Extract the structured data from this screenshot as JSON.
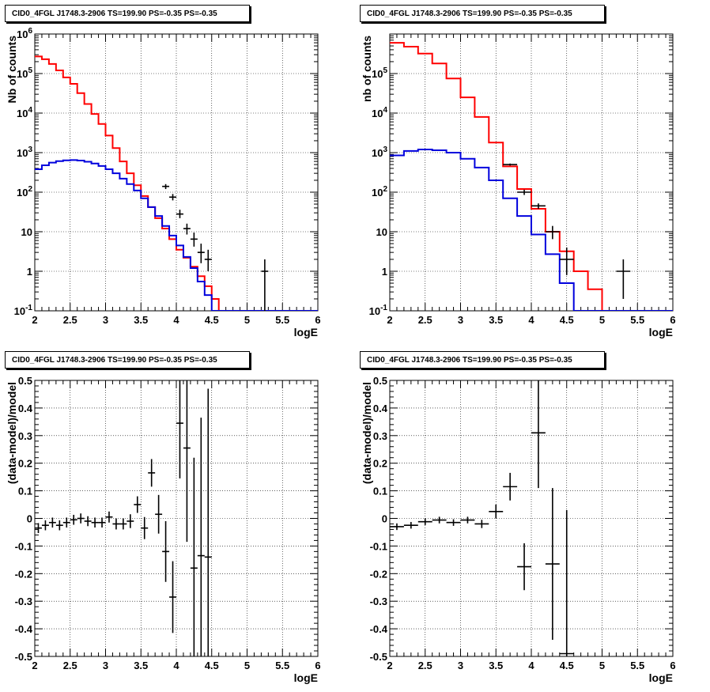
{
  "panels": [
    {
      "title": "CID0_4FGL J1748.3-2906 TS=199.90 PS=-0.35 PS=-0.35"
    },
    {
      "title": "CID0_4FGL J1748.3-2906 TS=199.90 PS=-0.35 PS=-0.35"
    },
    {
      "title": "CID0_4FGL J1748.3-2906 TS=199.90 PS=-0.35 PS=-0.35"
    },
    {
      "title": "CID0_4FGL J1748.3-2906 TS=199.90 PS=-0.35 PS=-0.35"
    }
  ],
  "colors": {
    "total_model": "#ff0000",
    "source_model": "#0000dd",
    "data": "#000000"
  },
  "chart_data": [
    {
      "type": "line",
      "title": "CID0_4FGL J1748.3-2906 TS=199.90 PS=-0.35 PS=-0.35",
      "xlabel": "logE",
      "ylabel": "Nb of counts",
      "xlim": [
        2,
        6
      ],
      "ylim": [
        0.1,
        1000000
      ],
      "yscale": "log",
      "grid": true,
      "xticks": [
        "2",
        "2.5",
        "3",
        "3.5",
        "4",
        "4.5",
        "5",
        "5.5",
        "6"
      ],
      "yticks": [
        "10^-1",
        "1",
        "10",
        "10^2",
        "10^3",
        "10^4",
        "10^5",
        "10^6"
      ],
      "bin_width": 0.1,
      "bin_edges_start": 2.0,
      "series": [
        {
          "style": "step",
          "color": "#ff0000",
          "values": [
            270000,
            230000,
            175000,
            120000,
            80000,
            55000,
            32000,
            17000,
            9500,
            5300,
            2700,
            1300,
            600,
            300,
            150,
            80,
            42,
            22,
            12,
            6.5,
            3.5,
            2.2,
            1.3,
            0.75,
            0.42,
            0.2,
            0.1,
            0.1,
            0.1,
            0.1,
            0.1,
            0.1,
            0.1,
            0.1,
            0.1,
            0.1,
            0.1,
            0.1,
            0.1,
            0.1
          ]
        },
        {
          "style": "step",
          "color": "#0000dd",
          "values": [
            380,
            480,
            560,
            610,
            640,
            650,
            630,
            590,
            530,
            460,
            380,
            300,
            220,
            160,
            110,
            70,
            42,
            25,
            14,
            8,
            4.5,
            2.3,
            1.2,
            0.55,
            0.25,
            0.1,
            0.1,
            0.1,
            0.1,
            0.1,
            0.1,
            0.1,
            0.1,
            0.1,
            0.1,
            0.1,
            0.1,
            0.1,
            0.1,
            0.1
          ]
        },
        {
          "style": "errorbar",
          "color": "#000000",
          "points": [
            {
              "x": 3.85,
              "y": 140,
              "lo": 120,
              "hi": 160
            },
            {
              "x": 3.95,
              "y": 75,
              "lo": 62,
              "hi": 90
            },
            {
              "x": 4.05,
              "y": 28,
              "lo": 22,
              "hi": 36
            },
            {
              "x": 4.15,
              "y": 12,
              "lo": 8.5,
              "hi": 16
            },
            {
              "x": 4.25,
              "y": 6.5,
              "lo": 4.2,
              "hi": 9.5
            },
            {
              "x": 4.35,
              "y": 3.0,
              "lo": 1.6,
              "hi": 5
            },
            {
              "x": 4.45,
              "y": 2.0,
              "lo": 1.0,
              "hi": 3.5
            },
            {
              "x": 5.25,
              "y": 1.0,
              "lo": 0.1,
              "hi": 2.0
            }
          ]
        }
      ]
    },
    {
      "type": "line",
      "title": "CID0_4FGL J1748.3-2906 TS=199.90 PS=-0.35 PS=-0.35",
      "xlabel": "logE",
      "ylabel": "nb of counts",
      "xlim": [
        2,
        6
      ],
      "ylim": [
        0.1,
        1000000
      ],
      "yscale": "log",
      "grid": true,
      "xticks": [
        "2",
        "2.5",
        "3",
        "3.5",
        "4",
        "4.5",
        "5",
        "5.5",
        "6"
      ],
      "yticks": [
        "10^-1",
        "1",
        "10",
        "10^2",
        "10^3",
        "10^4",
        "10^5"
      ],
      "bin_width": 0.2,
      "bin_edges_start": 2.0,
      "series": [
        {
          "style": "step",
          "color": "#ff0000",
          "values": [
            600000,
            480000,
            320000,
            180000,
            75000,
            25000,
            8000,
            1800,
            450,
            120,
            38,
            10,
            3.2,
            1.0,
            0.35,
            0.1,
            0.1,
            0.1,
            0.1,
            0.1
          ]
        },
        {
          "style": "step",
          "color": "#0000dd",
          "values": [
            850,
            1100,
            1200,
            1150,
            1000,
            700,
            420,
            200,
            70,
            25,
            8.5,
            2.7,
            0.5,
            0.1,
            0.1,
            0.1,
            0.1,
            0.1,
            0.1,
            0.1
          ]
        },
        {
          "style": "errorbar",
          "color": "#000000",
          "points": [
            {
              "x": 3.7,
              "y": 500,
              "lo": 470,
              "hi": 530
            },
            {
              "x": 3.9,
              "y": 100,
              "lo": 85,
              "hi": 115
            },
            {
              "x": 4.1,
              "y": 45,
              "lo": 38,
              "hi": 52
            },
            {
              "x": 4.3,
              "y": 10,
              "lo": 6.5,
              "hi": 14
            },
            {
              "x": 4.5,
              "y": 2.0,
              "lo": 0.8,
              "hi": 4.0
            },
            {
              "x": 5.3,
              "y": 1.0,
              "lo": 0.2,
              "hi": 2.0
            }
          ]
        }
      ]
    },
    {
      "type": "scatter",
      "title": "CID0_4FGL J1748.3-2906 TS=199.90 PS=-0.35 PS=-0.35",
      "xlabel": "logE",
      "ylabel": "(data-model)/model",
      "xlim": [
        2,
        6
      ],
      "ylim": [
        -0.5,
        0.5
      ],
      "grid": true,
      "xticks": [
        "2",
        "2.5",
        "3",
        "3.5",
        "4",
        "4.5",
        "5",
        "5.5",
        "6"
      ],
      "yticks": [
        "-0.5",
        "-0.4",
        "-0.3",
        "-0.2",
        "-0.1",
        "0",
        "0.1",
        "0.2",
        "0.3",
        "0.4",
        "0.5"
      ],
      "xerr": 0.05,
      "points": [
        {
          "x": 2.05,
          "y": -0.035,
          "err": 0.018
        },
        {
          "x": 2.15,
          "y": -0.025,
          "err": 0.018
        },
        {
          "x": 2.25,
          "y": -0.015,
          "err": 0.018
        },
        {
          "x": 2.35,
          "y": -0.025,
          "err": 0.018
        },
        {
          "x": 2.45,
          "y": -0.015,
          "err": 0.018
        },
        {
          "x": 2.55,
          "y": -0.005,
          "err": 0.018
        },
        {
          "x": 2.65,
          "y": 0.0,
          "err": 0.018
        },
        {
          "x": 2.75,
          "y": -0.01,
          "err": 0.018
        },
        {
          "x": 2.85,
          "y": -0.015,
          "err": 0.018
        },
        {
          "x": 2.95,
          "y": -0.015,
          "err": 0.018
        },
        {
          "x": 3.05,
          "y": 0.005,
          "err": 0.02
        },
        {
          "x": 3.15,
          "y": -0.02,
          "err": 0.02
        },
        {
          "x": 3.25,
          "y": -0.02,
          "err": 0.02
        },
        {
          "x": 3.35,
          "y": -0.01,
          "err": 0.025
        },
        {
          "x": 3.45,
          "y": 0.05,
          "err": 0.03
        },
        {
          "x": 3.55,
          "y": -0.035,
          "err": 0.04
        },
        {
          "x": 3.65,
          "y": 0.165,
          "err": 0.05
        },
        {
          "x": 3.75,
          "y": 0.015,
          "err": 0.07
        },
        {
          "x": 3.85,
          "y": -0.12,
          "err": 0.11
        },
        {
          "x": 3.95,
          "y": -0.285,
          "err": 0.13
        },
        {
          "x": 4.05,
          "y": 0.345,
          "err": 0.2
        },
        {
          "x": 4.15,
          "y": 0.255,
          "err": 0.34
        },
        {
          "x": 4.25,
          "y": -0.18,
          "err": 0.4
        },
        {
          "x": 4.35,
          "y": -0.135,
          "err": 0.5
        },
        {
          "x": 4.45,
          "y": -0.14,
          "err": 0.61
        }
      ]
    },
    {
      "type": "scatter",
      "title": "CID0_4FGL J1748.3-2906 TS=199.90 PS=-0.35 PS=-0.35",
      "xlabel": "logE",
      "ylabel": "(data-model)/model",
      "xlim": [
        2,
        6
      ],
      "ylim": [
        -0.5,
        0.5
      ],
      "grid": true,
      "xticks": [
        "2",
        "2.5",
        "3",
        "3.5",
        "4",
        "4.5",
        "5",
        "5.5",
        "6"
      ],
      "yticks": [
        "-0.5",
        "-0.4",
        "-0.3",
        "-0.2",
        "-0.1",
        "0",
        "0.1",
        "0.2",
        "0.3",
        "0.4",
        "0.5"
      ],
      "xerr": 0.1,
      "points": [
        {
          "x": 2.1,
          "y": -0.03,
          "err": 0.012
        },
        {
          "x": 2.3,
          "y": -0.025,
          "err": 0.012
        },
        {
          "x": 2.5,
          "y": -0.012,
          "err": 0.012
        },
        {
          "x": 2.7,
          "y": -0.006,
          "err": 0.012
        },
        {
          "x": 2.9,
          "y": -0.015,
          "err": 0.012
        },
        {
          "x": 3.1,
          "y": -0.006,
          "err": 0.012
        },
        {
          "x": 3.3,
          "y": -0.02,
          "err": 0.015
        },
        {
          "x": 3.5,
          "y": 0.025,
          "err": 0.025
        },
        {
          "x": 3.7,
          "y": 0.115,
          "err": 0.05
        },
        {
          "x": 3.9,
          "y": -0.175,
          "err": 0.085
        },
        {
          "x": 4.1,
          "y": 0.31,
          "err": 0.2
        },
        {
          "x": 4.3,
          "y": -0.165,
          "err": 0.275
        },
        {
          "x": 4.5,
          "y": -0.49,
          "err": 0.52
        }
      ]
    }
  ]
}
